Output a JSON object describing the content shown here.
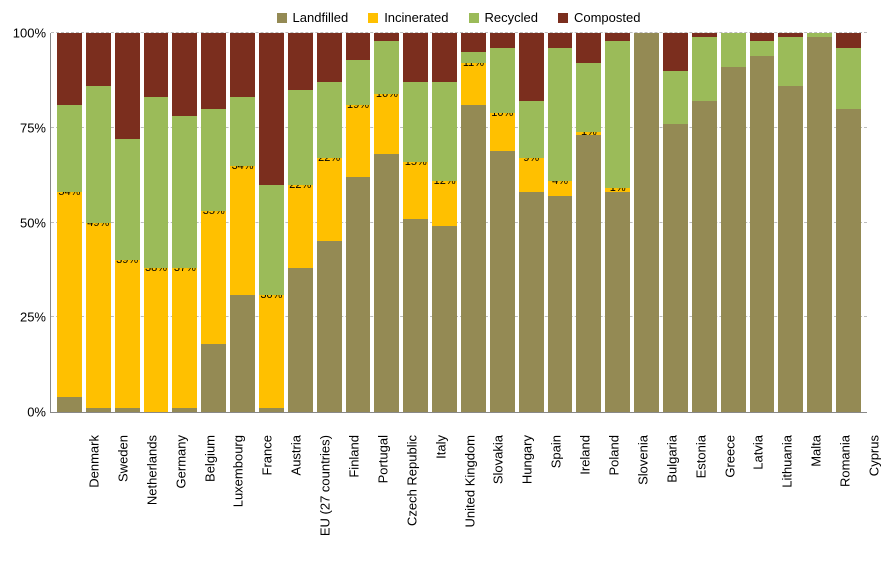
{
  "chart": {
    "type": "stacked-bar",
    "background_color": "#ffffff",
    "grid_color": "#bdbdbd",
    "axis_color": "#888888",
    "label_fontsize": 13,
    "datalabel_fontsize": 11,
    "ylim": [
      0,
      100
    ],
    "ytick_step": 25,
    "y_format_suffix": "%",
    "yticks": [
      "0%",
      "25%",
      "50%",
      "75%",
      "100%"
    ],
    "legend": [
      {
        "label": "Landfilled",
        "color": "#948a54"
      },
      {
        "label": "Incinerated",
        "color": "#ffc000"
      },
      {
        "label": "Recycled",
        "color": "#9bbb59"
      },
      {
        "label": "Composted",
        "color": "#7b2e1e"
      }
    ],
    "colors": {
      "landfilled": "#948a54",
      "incinerated": "#ffc000",
      "recycled": "#9bbb59",
      "composted": "#7b2e1e"
    },
    "series_order": [
      "landfilled",
      "incinerated",
      "recycled",
      "composted"
    ],
    "data_label_series": "incinerated",
    "countries": [
      {
        "name": "Denmark",
        "landfilled": 4,
        "incinerated": 54,
        "recycled": 23,
        "composted": 19,
        "label": "54%"
      },
      {
        "name": "Sweden",
        "landfilled": 1,
        "incinerated": 49,
        "recycled": 36,
        "composted": 14,
        "label": "49%"
      },
      {
        "name": "Netherlands",
        "landfilled": 1,
        "incinerated": 39,
        "recycled": 32,
        "composted": 28,
        "label": "39%"
      },
      {
        "name": "Germany",
        "landfilled": 0,
        "incinerated": 38,
        "recycled": 45,
        "composted": 17,
        "label": "38%"
      },
      {
        "name": "Belgium",
        "landfilled": 1,
        "incinerated": 37,
        "recycled": 40,
        "composted": 22,
        "label": "37%"
      },
      {
        "name": "Luxembourg",
        "landfilled": 18,
        "incinerated": 35,
        "recycled": 27,
        "composted": 20,
        "label": "35%"
      },
      {
        "name": "France",
        "landfilled": 31,
        "incinerated": 34,
        "recycled": 18,
        "composted": 17,
        "label": "34%"
      },
      {
        "name": "Austria",
        "landfilled": 1,
        "incinerated": 30,
        "recycled": 29,
        "composted": 40,
        "label": "30%"
      },
      {
        "name": "EU (27 countries)",
        "landfilled": 38,
        "incinerated": 22,
        "recycled": 25,
        "composted": 15,
        "label": "22%"
      },
      {
        "name": "Finland",
        "landfilled": 45,
        "incinerated": 22,
        "recycled": 20,
        "composted": 13,
        "label": "22%"
      },
      {
        "name": "Portugal",
        "landfilled": 62,
        "incinerated": 19,
        "recycled": 12,
        "composted": 7,
        "label": "19%"
      },
      {
        "name": "Czech Republic",
        "landfilled": 68,
        "incinerated": 16,
        "recycled": 14,
        "composted": 2,
        "label": "16%"
      },
      {
        "name": "Italy",
        "landfilled": 51,
        "incinerated": 15,
        "recycled": 21,
        "composted": 13,
        "label": "15%"
      },
      {
        "name": "United Kingdom",
        "landfilled": 49,
        "incinerated": 12,
        "recycled": 26,
        "composted": 13,
        "label": "12%"
      },
      {
        "name": "Slovakia",
        "landfilled": 81,
        "incinerated": 11,
        "recycled": 3,
        "composted": 5,
        "label": "11%"
      },
      {
        "name": "Hungary",
        "landfilled": 69,
        "incinerated": 10,
        "recycled": 17,
        "composted": 4,
        "label": "10%"
      },
      {
        "name": "Spain",
        "landfilled": 58,
        "incinerated": 9,
        "recycled": 15,
        "composted": 18,
        "label": "9%"
      },
      {
        "name": "Ireland",
        "landfilled": 57,
        "incinerated": 4,
        "recycled": 35,
        "composted": 4,
        "label": "4%"
      },
      {
        "name": "Poland",
        "landfilled": 73,
        "incinerated": 1,
        "recycled": 18,
        "composted": 8,
        "label": "1%"
      },
      {
        "name": "Slovenia",
        "landfilled": 58,
        "incinerated": 1,
        "recycled": 39,
        "composted": 2,
        "label": "1%"
      },
      {
        "name": "Bulgaria",
        "landfilled": 100,
        "incinerated": 0,
        "recycled": 0,
        "composted": 0,
        "label": ""
      },
      {
        "name": "Estonia",
        "landfilled": 76,
        "incinerated": 0,
        "recycled": 14,
        "composted": 10,
        "label": ""
      },
      {
        "name": "Greece",
        "landfilled": 82,
        "incinerated": 0,
        "recycled": 17,
        "composted": 1,
        "label": ""
      },
      {
        "name": "Latvia",
        "landfilled": 91,
        "incinerated": 0,
        "recycled": 9,
        "composted": 0,
        "label": ""
      },
      {
        "name": "Lithuania",
        "landfilled": 94,
        "incinerated": 0,
        "recycled": 4,
        "composted": 2,
        "label": ""
      },
      {
        "name": "Malta",
        "landfilled": 86,
        "incinerated": 0,
        "recycled": 13,
        "composted": 1,
        "label": ""
      },
      {
        "name": "Romania",
        "landfilled": 99,
        "incinerated": 0,
        "recycled": 1,
        "composted": 0,
        "label": ""
      },
      {
        "name": "Cyprus",
        "landfilled": 80,
        "incinerated": 0,
        "recycled": 16,
        "composted": 4,
        "label": ""
      }
    ]
  }
}
